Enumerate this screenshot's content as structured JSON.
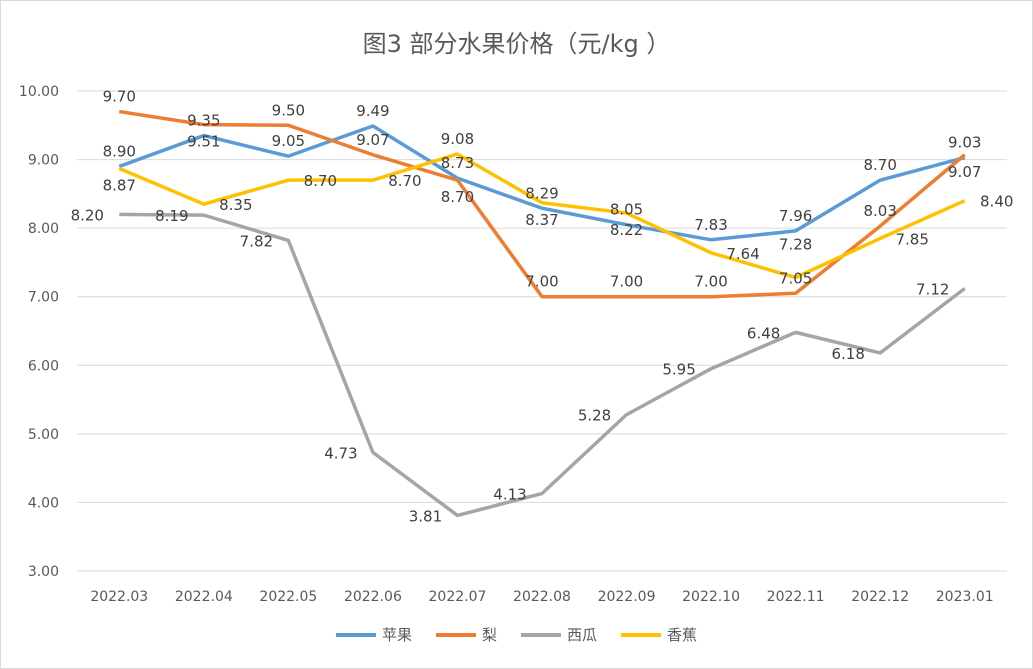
{
  "chart_data": {
    "type": "line",
    "title": "图3  部分水果价格（元/kg ）",
    "categories": [
      "2022.03",
      "2022.04",
      "2022.05",
      "2022.06",
      "2022.07",
      "2022.08",
      "2022.09",
      "2022.10",
      "2022.11",
      "2022.12",
      "2023.01"
    ],
    "ylim": [
      3,
      10
    ],
    "yticks": [
      "3.00",
      "4.00",
      "5.00",
      "6.00",
      "7.00",
      "8.00",
      "9.00",
      "10.00"
    ],
    "grid": true,
    "legend": "bottom",
    "series": [
      {
        "name": "苹果",
        "color": "#5b9bd5",
        "values": [
          8.9,
          9.35,
          9.05,
          9.49,
          8.73,
          8.29,
          8.05,
          7.83,
          7.96,
          8.7,
          9.03
        ]
      },
      {
        "name": "梨",
        "color": "#ed7d31",
        "values": [
          9.7,
          9.51,
          9.5,
          9.07,
          8.7,
          7.0,
          7.0,
          7.0,
          7.05,
          8.03,
          9.07
        ]
      },
      {
        "name": "西瓜",
        "color": "#a5a5a5",
        "values": [
          8.2,
          8.19,
          7.82,
          4.73,
          3.81,
          4.13,
          5.28,
          5.95,
          6.48,
          6.18,
          7.12
        ]
      },
      {
        "name": "香蕉",
        "color": "#ffc000",
        "values": [
          8.87,
          8.35,
          8.7,
          8.7,
          9.08,
          8.37,
          8.22,
          7.64,
          7.28,
          7.85,
          8.4
        ]
      }
    ]
  }
}
